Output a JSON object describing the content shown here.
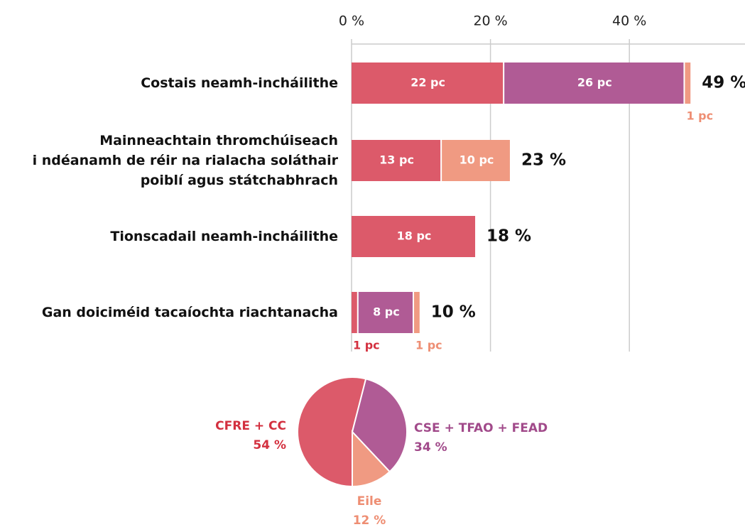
{
  "chart_data": [
    {
      "type": "bar",
      "categories": [
        "Costais neamh-incháilithe",
        "Mainneachtain thromchúiseach\ni ndéanamh de réir na rialacha soláthair\npoiblí agus státchabhrach",
        "Tionscadail neamh-incháilithe",
        "Gan doiciméid tacaíochta riachtanacha"
      ],
      "series": [
        {
          "color": "#dc5a6a",
          "label_color": "#d3303f",
          "values": [
            22,
            13,
            18,
            1
          ],
          "value_labels": [
            "22 pc",
            "13 pc",
            "18 pc",
            "1 pc"
          ]
        },
        {
          "color": "#b05b95",
          "label_color": "#a14a8a",
          "values": [
            26,
            null,
            null,
            8
          ],
          "value_labels": [
            "26 pc",
            null,
            null,
            "8 pc"
          ]
        },
        {
          "color": "#f09a82",
          "label_color": "#ee8e73",
          "values": [
            1,
            10,
            null,
            1
          ],
          "value_labels": [
            "1 pc",
            "10 pc",
            null,
            "1 pc"
          ]
        }
      ],
      "totals": [
        49,
        23,
        18,
        10
      ],
      "total_labels": [
        "49 %",
        "23 %",
        "18 %",
        "10 %"
      ],
      "xlim": [
        0,
        50
      ],
      "xticks": [
        {
          "value": 0,
          "label": "0 %"
        },
        {
          "value": 20,
          "label": "20 %"
        },
        {
          "value": 40,
          "label": "40 %"
        }
      ],
      "grid": true
    },
    {
      "type": "pie",
      "labels": [
        "CFRE + CC",
        "CSE + TFAO + FEAD",
        "Eile"
      ],
      "values": [
        54,
        34,
        12
      ],
      "value_labels": [
        "54 %",
        "34 %",
        "12 %"
      ],
      "colors": [
        "#dc5a6a",
        "#b05b95",
        "#f09a82"
      ],
      "label_colors": [
        "#d3303f",
        "#a14a8a",
        "#ee8e73"
      ]
    }
  ]
}
